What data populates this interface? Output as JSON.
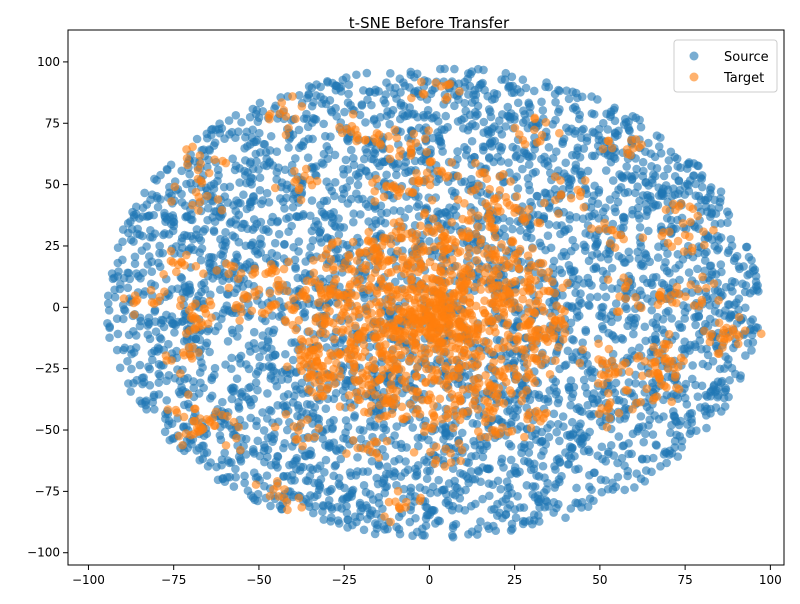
{
  "chart_data": {
    "type": "scatter",
    "title": "t-SNE Before Transfer",
    "xlabel": "",
    "ylabel": "",
    "xlim": [
      -106,
      104
    ],
    "ylim": [
      -105,
      113
    ],
    "xticks": [
      -100,
      -75,
      -50,
      -25,
      0,
      25,
      50,
      75,
      100
    ],
    "yticks": [
      -100,
      -75,
      -50,
      -25,
      0,
      25,
      50,
      75,
      100
    ],
    "grid": false,
    "legend": "top-right",
    "series": [
      {
        "name": "Source",
        "color": "#1f77b4",
        "alpha": 0.6,
        "shape": "ellipse",
        "center": [
          1,
          2
        ],
        "radius_x": 96,
        "radius_y": 96,
        "approx_points": 4000
      },
      {
        "name": "Target",
        "color": "#ff7f0e",
        "alpha": 0.6,
        "core_center": [
          0,
          -5
        ],
        "core_radius_x": 40,
        "core_radius_y": 42,
        "approx_points": 1800
      }
    ]
  }
}
